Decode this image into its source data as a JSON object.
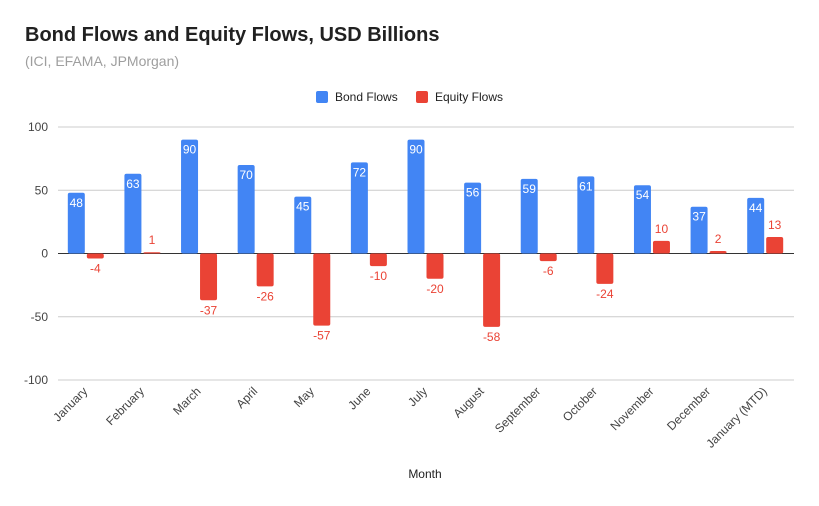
{
  "chart_data": {
    "type": "bar",
    "title": "Bond Flows and Equity Flows, USD Billions",
    "subtitle": "(ICI, EFAMA, JPMorgan)",
    "xlabel": "Month",
    "ylabel": "",
    "ylim": [
      -100,
      100
    ],
    "yticks": [
      100,
      50,
      0,
      -50,
      -100
    ],
    "grid": true,
    "legend_position": "top-center",
    "categories": [
      "January",
      "February",
      "March",
      "April",
      "May",
      "June",
      "July",
      "August",
      "September",
      "October",
      "November",
      "December",
      "January (MTD)"
    ],
    "series": [
      {
        "name": "Bond Flows",
        "color": "#4285f4",
        "label_color": "#ffffff",
        "values": [
          48,
          63,
          90,
          70,
          45,
          72,
          90,
          56,
          59,
          61,
          54,
          37,
          44
        ]
      },
      {
        "name": "Equity Flows",
        "color": "#ea4335",
        "label_color": "#ea4335",
        "values": [
          -4,
          1,
          -37,
          -26,
          -57,
          -10,
          -20,
          -58,
          -6,
          -24,
          10,
          2,
          13
        ]
      }
    ]
  }
}
